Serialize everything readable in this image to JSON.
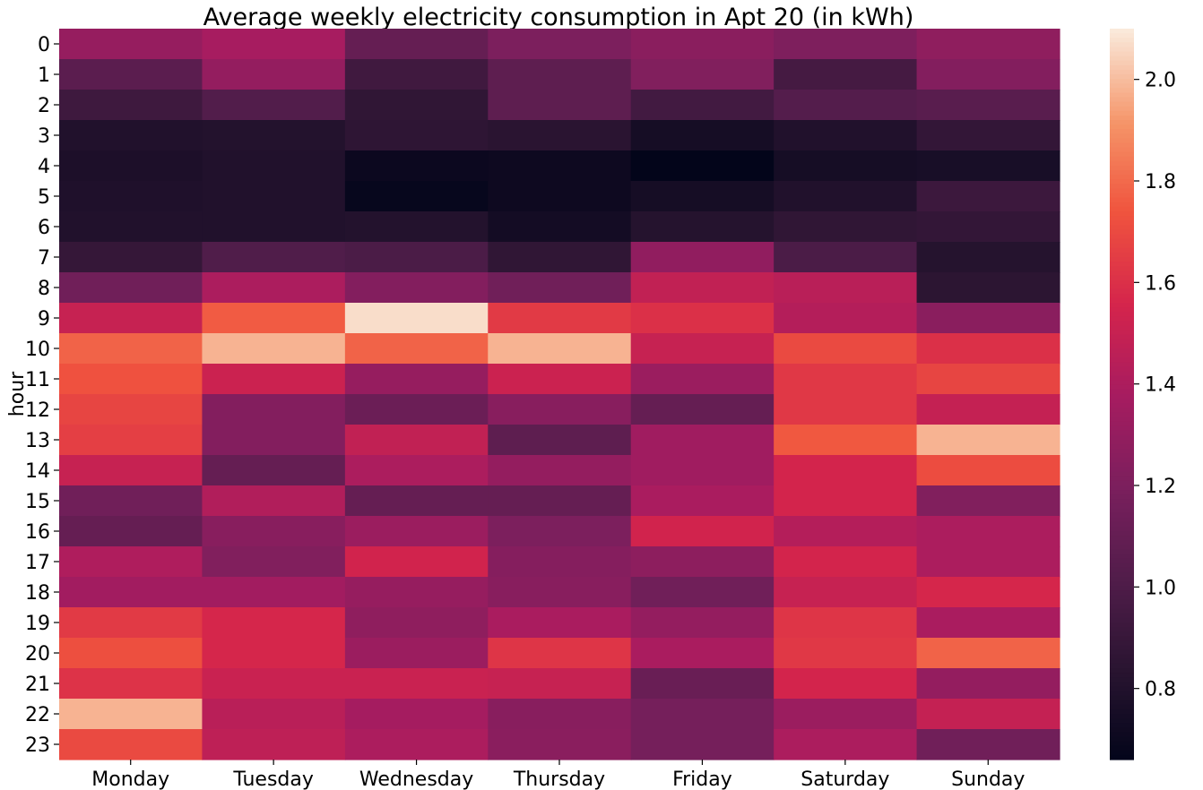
{
  "chart_data": {
    "type": "heatmap",
    "title": "Average weekly electricity consumption in Apt 20 (in kWh)",
    "xlabel": "",
    "ylabel": "hour",
    "x": [
      "Monday",
      "Tuesday",
      "Wednesday",
      "Thursday",
      "Friday",
      "Saturday",
      "Sunday"
    ],
    "y": [
      "0",
      "1",
      "2",
      "3",
      "4",
      "5",
      "6",
      "7",
      "8",
      "9",
      "10",
      "11",
      "12",
      "13",
      "14",
      "15",
      "16",
      "17",
      "18",
      "19",
      "20",
      "21",
      "22",
      "23"
    ],
    "values": [
      [
        1.31,
        1.38,
        1.1,
        1.2,
        1.26,
        1.21,
        1.28
      ],
      [
        1.06,
        1.3,
        0.94,
        1.07,
        1.22,
        0.96,
        1.23
      ],
      [
        0.93,
        1.02,
        0.87,
        1.07,
        0.95,
        1.03,
        1.05
      ],
      [
        0.8,
        0.81,
        0.86,
        0.84,
        0.75,
        0.8,
        0.88
      ],
      [
        0.78,
        0.8,
        0.7,
        0.71,
        0.66,
        0.75,
        0.76
      ],
      [
        0.79,
        0.8,
        0.68,
        0.71,
        0.75,
        0.8,
        0.92
      ],
      [
        0.8,
        0.8,
        0.81,
        0.74,
        0.82,
        0.87,
        0.88
      ],
      [
        0.89,
        1.01,
        0.99,
        0.87,
        1.29,
        0.99,
        0.82
      ],
      [
        1.15,
        1.4,
        1.23,
        1.15,
        1.48,
        1.45,
        0.85
      ],
      [
        1.5,
        1.76,
        2.07,
        1.64,
        1.6,
        1.43,
        1.26
      ],
      [
        1.78,
        1.98,
        1.78,
        1.98,
        1.5,
        1.7,
        1.6
      ],
      [
        1.73,
        1.52,
        1.31,
        1.52,
        1.33,
        1.63,
        1.68
      ],
      [
        1.68,
        1.23,
        1.13,
        1.25,
        1.1,
        1.63,
        1.49
      ],
      [
        1.66,
        1.23,
        1.48,
        1.07,
        1.35,
        1.75,
        1.98
      ],
      [
        1.5,
        1.1,
        1.4,
        1.3,
        1.35,
        1.55,
        1.71
      ],
      [
        1.15,
        1.42,
        1.1,
        1.1,
        1.39,
        1.55,
        1.22
      ],
      [
        1.1,
        1.25,
        1.33,
        1.2,
        1.54,
        1.43,
        1.4
      ],
      [
        1.41,
        1.22,
        1.54,
        1.24,
        1.27,
        1.55,
        1.4
      ],
      [
        1.36,
        1.36,
        1.31,
        1.25,
        1.15,
        1.5,
        1.56
      ],
      [
        1.64,
        1.56,
        1.28,
        1.39,
        1.3,
        1.62,
        1.39
      ],
      [
        1.72,
        1.56,
        1.33,
        1.62,
        1.39,
        1.63,
        1.78
      ],
      [
        1.61,
        1.51,
        1.51,
        1.5,
        1.12,
        1.55,
        1.3
      ],
      [
        1.98,
        1.45,
        1.37,
        1.25,
        1.17,
        1.33,
        1.49
      ],
      [
        1.7,
        1.47,
        1.4,
        1.26,
        1.17,
        1.4,
        1.15
      ]
    ],
    "colorbar": {
      "min": 0.66,
      "max": 2.1,
      "ticks": [
        0.8,
        1.0,
        1.2,
        1.4,
        1.6,
        1.8,
        2.0
      ],
      "tick_labels": [
        "0.8",
        "1.0",
        "1.2",
        "1.4",
        "1.6",
        "1.8",
        "2.0"
      ],
      "colormap": "rocket"
    }
  }
}
